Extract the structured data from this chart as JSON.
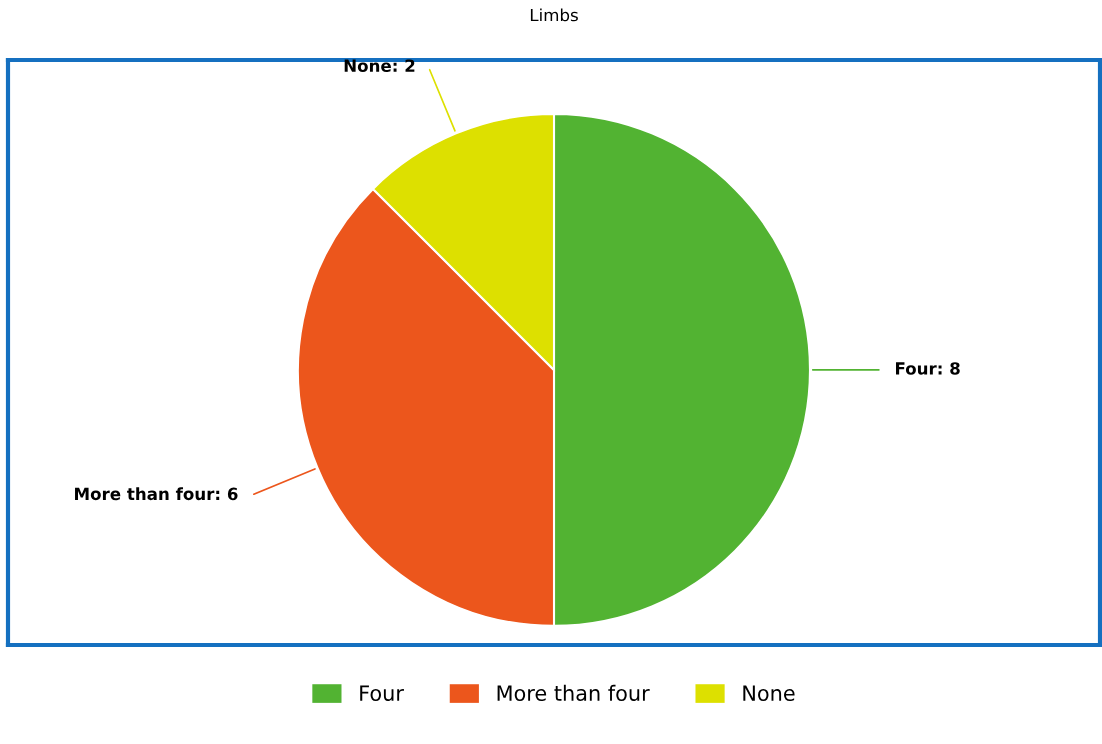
{
  "chart_data": {
    "type": "pie",
    "title": "Limbs",
    "categories": [
      "Four",
      "More than four",
      "None"
    ],
    "values": [
      8,
      6,
      2
    ],
    "colors": [
      "#52b332",
      "#ec561c",
      "#dde000"
    ],
    "value_labels": [
      ": 8",
      ": 6",
      ": 2"
    ],
    "legend": "bottom"
  }
}
